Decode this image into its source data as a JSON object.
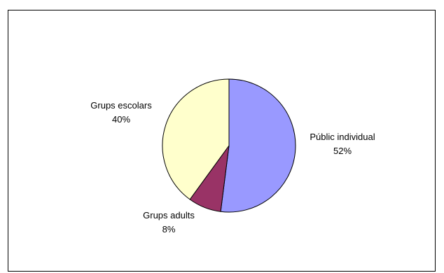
{
  "chart_data": {
    "type": "pie",
    "title": "",
    "start_angle_deg": 0,
    "direction": "clockwise",
    "slices": [
      {
        "label": "Públic individual",
        "value": 52,
        "value_label": "52%",
        "color": "#9999ff"
      },
      {
        "label": "Grups adults",
        "value": 8,
        "value_label": "8%",
        "color": "#993366"
      },
      {
        "label": "Grups escolars",
        "value": 40,
        "value_label": "40%",
        "color": "#ffffcc"
      }
    ],
    "legend": "none"
  }
}
